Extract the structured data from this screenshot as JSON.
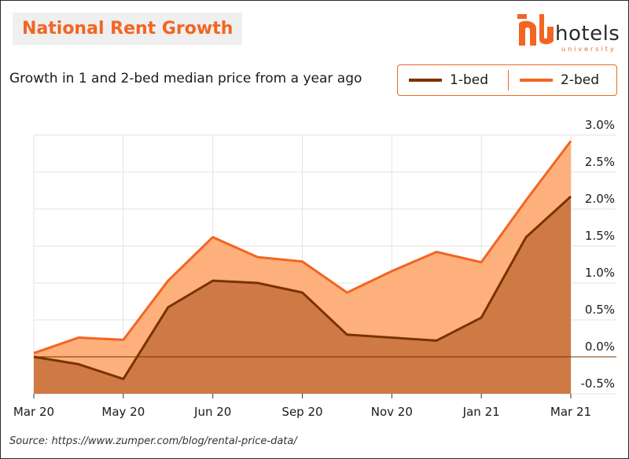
{
  "header": {
    "title": "National Rent Growth",
    "subtitle": "Growth in 1 and 2-bed median price from a year ago"
  },
  "logo": {
    "word": "hotels",
    "sub": "university"
  },
  "legend": {
    "items": [
      {
        "label": "1-bed",
        "color": "#7a3300"
      },
      {
        "label": "2-bed",
        "color": "#f26522"
      }
    ]
  },
  "source": "Source: https://www.zumper.com/blog/rental-price-data/",
  "colors": {
    "accent": "#f26522",
    "one_bed_line": "#7a3300",
    "one_bed_fill": "#cf7a45",
    "two_bed_fill": "#fdb07c"
  },
  "chart_data": {
    "type": "area",
    "x": [
      "2020-03",
      "2020-04",
      "2020-05",
      "2020-06",
      "2020-07",
      "2020-08",
      "2020-09",
      "2020-10",
      "2020-11",
      "2020-12",
      "2021-01",
      "2021-02",
      "2021-03"
    ],
    "x_tick_labels": [
      "Mar 20",
      "May 20",
      "Jun 20",
      "Sep 20",
      "Nov 20",
      "Jan 21",
      "Mar 21"
    ],
    "y_tick_labels": [
      "3.0%",
      "2.5%",
      "2.0%",
      "1.5%",
      "1.0%",
      "0.5%",
      "0.0%",
      "-0.5%"
    ],
    "y_ticks": [
      3.0,
      2.5,
      2.0,
      1.5,
      1.0,
      0.5,
      0.0,
      -0.5
    ],
    "ylim": [
      -0.5,
      3.0
    ],
    "grid": true,
    "legend_position": "top-right",
    "series": [
      {
        "name": "1-bed",
        "values": [
          0.0,
          -0.1,
          -0.3,
          0.67,
          1.03,
          1.0,
          0.87,
          0.3,
          0.26,
          0.22,
          0.53,
          1.62,
          2.17
        ]
      },
      {
        "name": "2-bed",
        "values": [
          0.05,
          0.26,
          0.23,
          1.03,
          1.62,
          1.35,
          1.29,
          0.87,
          1.16,
          1.42,
          1.28,
          2.12,
          2.92
        ]
      }
    ]
  }
}
